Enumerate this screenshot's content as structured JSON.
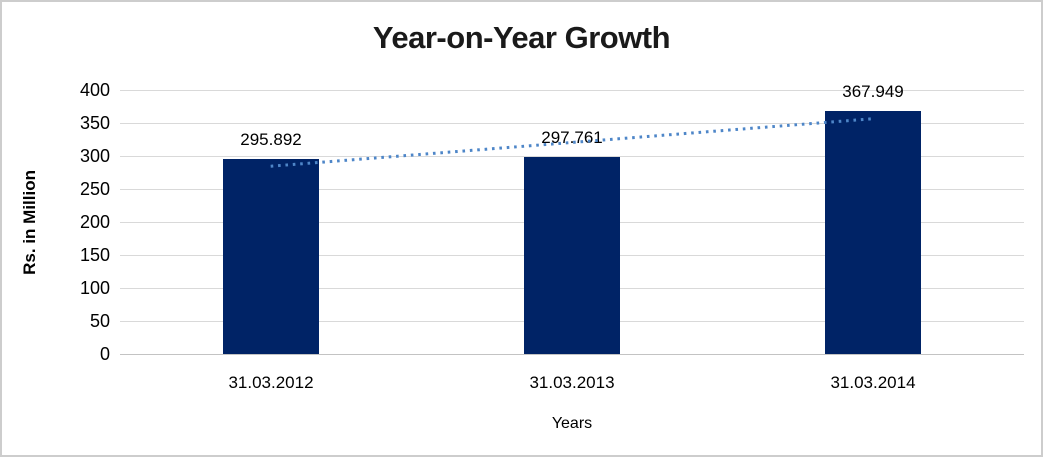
{
  "chart_data": {
    "type": "bar",
    "title": "Year-on-Year Growth",
    "categories": [
      "31.03.2012",
      "31.03.2013",
      "31.03.2014"
    ],
    "values": [
      295.892,
      297.761,
      367.949
    ],
    "data_labels": [
      "295.892",
      "297.761",
      "367.949"
    ],
    "xlabel": "Years",
    "ylabel": "Rs. in Million",
    "ylim": [
      0,
      400
    ],
    "yticks": [
      0,
      50,
      100,
      150,
      200,
      250,
      300,
      350,
      400
    ],
    "grid": true,
    "legend": "none",
    "trendline": {
      "type": "linear",
      "style": "dotted"
    }
  },
  "colors": {
    "bar": "#002366",
    "trendline": "#4e86c8",
    "gridline": "#d9d9d9",
    "baseline": "#c3c3c3",
    "frame_border": "#cdcdcd",
    "text": "#000000",
    "title_text": "#1a1a1a",
    "background": "#ffffff"
  }
}
